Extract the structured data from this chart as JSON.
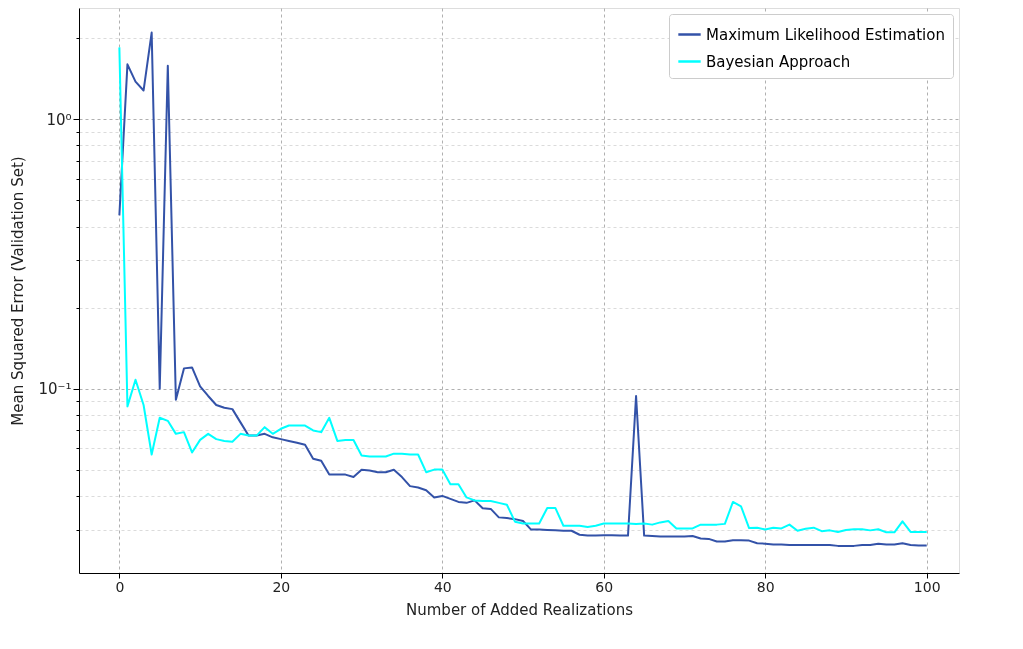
{
  "chart_data": {
    "type": "line",
    "xlabel": "Number of Added Realizations",
    "ylabel": "Mean Squared Error (Validation Set)",
    "x": [
      0,
      1,
      2,
      3,
      4,
      5,
      6,
      7,
      8,
      9,
      10,
      11,
      12,
      13,
      14,
      15,
      16,
      17,
      18,
      19,
      20,
      21,
      22,
      23,
      24,
      25,
      26,
      27,
      28,
      29,
      30,
      31,
      32,
      33,
      34,
      35,
      36,
      37,
      38,
      39,
      40,
      41,
      42,
      43,
      44,
      45,
      46,
      47,
      48,
      49,
      50,
      51,
      52,
      53,
      54,
      55,
      56,
      57,
      58,
      59,
      60,
      61,
      62,
      63,
      64,
      65,
      66,
      67,
      68,
      69,
      70,
      71,
      72,
      73,
      74,
      75,
      76,
      77,
      78,
      79,
      80,
      81,
      82,
      83,
      84,
      85,
      86,
      87,
      88,
      89,
      90,
      91,
      92,
      93,
      94,
      95,
      96,
      97,
      98,
      99,
      100
    ],
    "series": [
      {
        "name": "Maximum Likelihood Estimation",
        "color": "#3352a8",
        "values": [
          0.44,
          1.6,
          1.38,
          1.28,
          2.1,
          0.1,
          1.58,
          0.091,
          0.119,
          0.12,
          0.102,
          0.094,
          0.087,
          0.085,
          0.084,
          0.075,
          0.067,
          0.067,
          0.068,
          0.066,
          0.065,
          0.064,
          0.063,
          0.062,
          0.055,
          0.054,
          0.048,
          0.048,
          0.048,
          0.047,
          0.05,
          0.0497,
          0.049,
          0.049,
          0.05,
          0.047,
          0.0435,
          0.043,
          0.042,
          0.0395,
          0.04,
          0.039,
          0.038,
          0.0377,
          0.0385,
          0.036,
          0.0358,
          0.0333,
          0.0331,
          0.0328,
          0.0323,
          0.03,
          0.03,
          0.0299,
          0.0298,
          0.0297,
          0.0297,
          0.0287,
          0.0285,
          0.0285,
          0.0286,
          0.0286,
          0.0285,
          0.0285,
          0.094,
          0.0285,
          0.0284,
          0.0283,
          0.0283,
          0.0283,
          0.0283,
          0.0284,
          0.0278,
          0.0277,
          0.0271,
          0.0271,
          0.0274,
          0.0274,
          0.0273,
          0.0267,
          0.0266,
          0.0264,
          0.0264,
          0.0263,
          0.0263,
          0.0263,
          0.0263,
          0.0263,
          0.0263,
          0.0261,
          0.0261,
          0.0261,
          0.0263,
          0.0263,
          0.0266,
          0.0264,
          0.0264,
          0.0267,
          0.0263,
          0.0262,
          0.0262
        ]
      },
      {
        "name": "Bayesian Approach",
        "color": "#00ffff",
        "values": [
          1.85,
          0.086,
          0.108,
          0.087,
          0.057,
          0.078,
          0.076,
          0.068,
          0.069,
          0.058,
          0.0646,
          0.068,
          0.065,
          0.064,
          0.0636,
          0.068,
          0.067,
          0.067,
          0.072,
          0.068,
          0.071,
          0.073,
          0.073,
          0.073,
          0.07,
          0.069,
          0.078,
          0.064,
          0.0645,
          0.0645,
          0.0565,
          0.056,
          0.056,
          0.056,
          0.0574,
          0.0574,
          0.057,
          0.057,
          0.049,
          0.0501,
          0.0501,
          0.0442,
          0.0442,
          0.0395,
          0.0385,
          0.0383,
          0.0383,
          0.0377,
          0.0371,
          0.0321,
          0.0316,
          0.0316,
          0.0316,
          0.0361,
          0.0361,
          0.031,
          0.031,
          0.031,
          0.0307,
          0.031,
          0.0316,
          0.0316,
          0.0316,
          0.0316,
          0.0315,
          0.0316,
          0.0313,
          0.0319,
          0.0323,
          0.0303,
          0.0303,
          0.0303,
          0.0313,
          0.0313,
          0.0313,
          0.0315,
          0.038,
          0.0366,
          0.0304,
          0.0305,
          0.03,
          0.0305,
          0.0303,
          0.0313,
          0.0297,
          0.0302,
          0.0305,
          0.0296,
          0.0298,
          0.0294,
          0.0299,
          0.0301,
          0.0301,
          0.0298,
          0.0301,
          0.0293,
          0.0293,
          0.0322,
          0.0294,
          0.0294,
          0.0294
        ]
      }
    ],
    "xlim": [
      -5,
      104
    ],
    "xticks": [
      0,
      20,
      40,
      60,
      80,
      100
    ],
    "log": true,
    "ylim": [
      0.0207,
      2.59
    ],
    "yticks": [
      {
        "value": 0.03,
        "label": null
      },
      {
        "value": 0.04,
        "label": null
      },
      {
        "value": 0.05,
        "label": null
      },
      {
        "value": 0.06,
        "label": null
      },
      {
        "value": 0.07,
        "label": null
      },
      {
        "value": 0.08,
        "label": null
      },
      {
        "value": 0.09,
        "label": null
      },
      {
        "value": 0.1,
        "label": "10⁻¹"
      },
      {
        "value": 0.2,
        "label": null
      },
      {
        "value": 0.3,
        "label": null
      },
      {
        "value": 0.4,
        "label": null
      },
      {
        "value": 0.5,
        "label": null
      },
      {
        "value": 0.6,
        "label": null
      },
      {
        "value": 0.7,
        "label": null
      },
      {
        "value": 0.8,
        "label": null
      },
      {
        "value": 0.9,
        "label": null
      },
      {
        "value": 1,
        "label": "10⁰"
      },
      {
        "value": 2,
        "label": null
      }
    ],
    "grid": true,
    "legend": "top right",
    "line_style": "solid",
    "marker": "none"
  }
}
